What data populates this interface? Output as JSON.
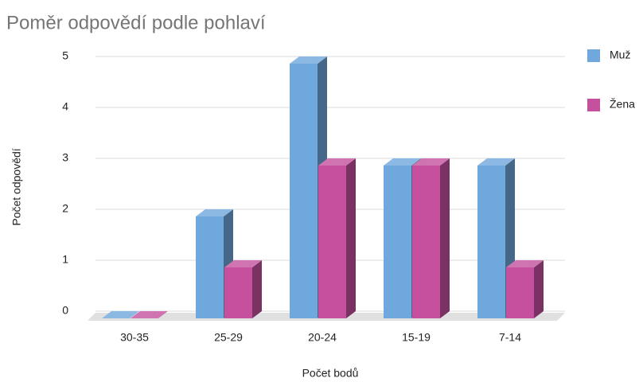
{
  "chart_data": {
    "type": "bar3d",
    "title": "Poměr odpovědí podle pohlaví",
    "x_label": "Počet bodů",
    "y_label": "Počet odpovědí",
    "categories": [
      "30-35",
      "25-29",
      "20-24",
      "15-19",
      "7-14"
    ],
    "series": [
      {
        "name": "Muž",
        "color": "#6fa8dc",
        "values": [
          0,
          2,
          5,
          3,
          3
        ]
      },
      {
        "name": "Žena",
        "color": "#c4509e",
        "values": [
          0,
          1,
          3,
          3,
          1
        ]
      }
    ],
    "ylim": [
      0,
      5
    ],
    "yticks": [
      0,
      1,
      2,
      3,
      4,
      5
    ],
    "grid": true,
    "legend": "right"
  }
}
